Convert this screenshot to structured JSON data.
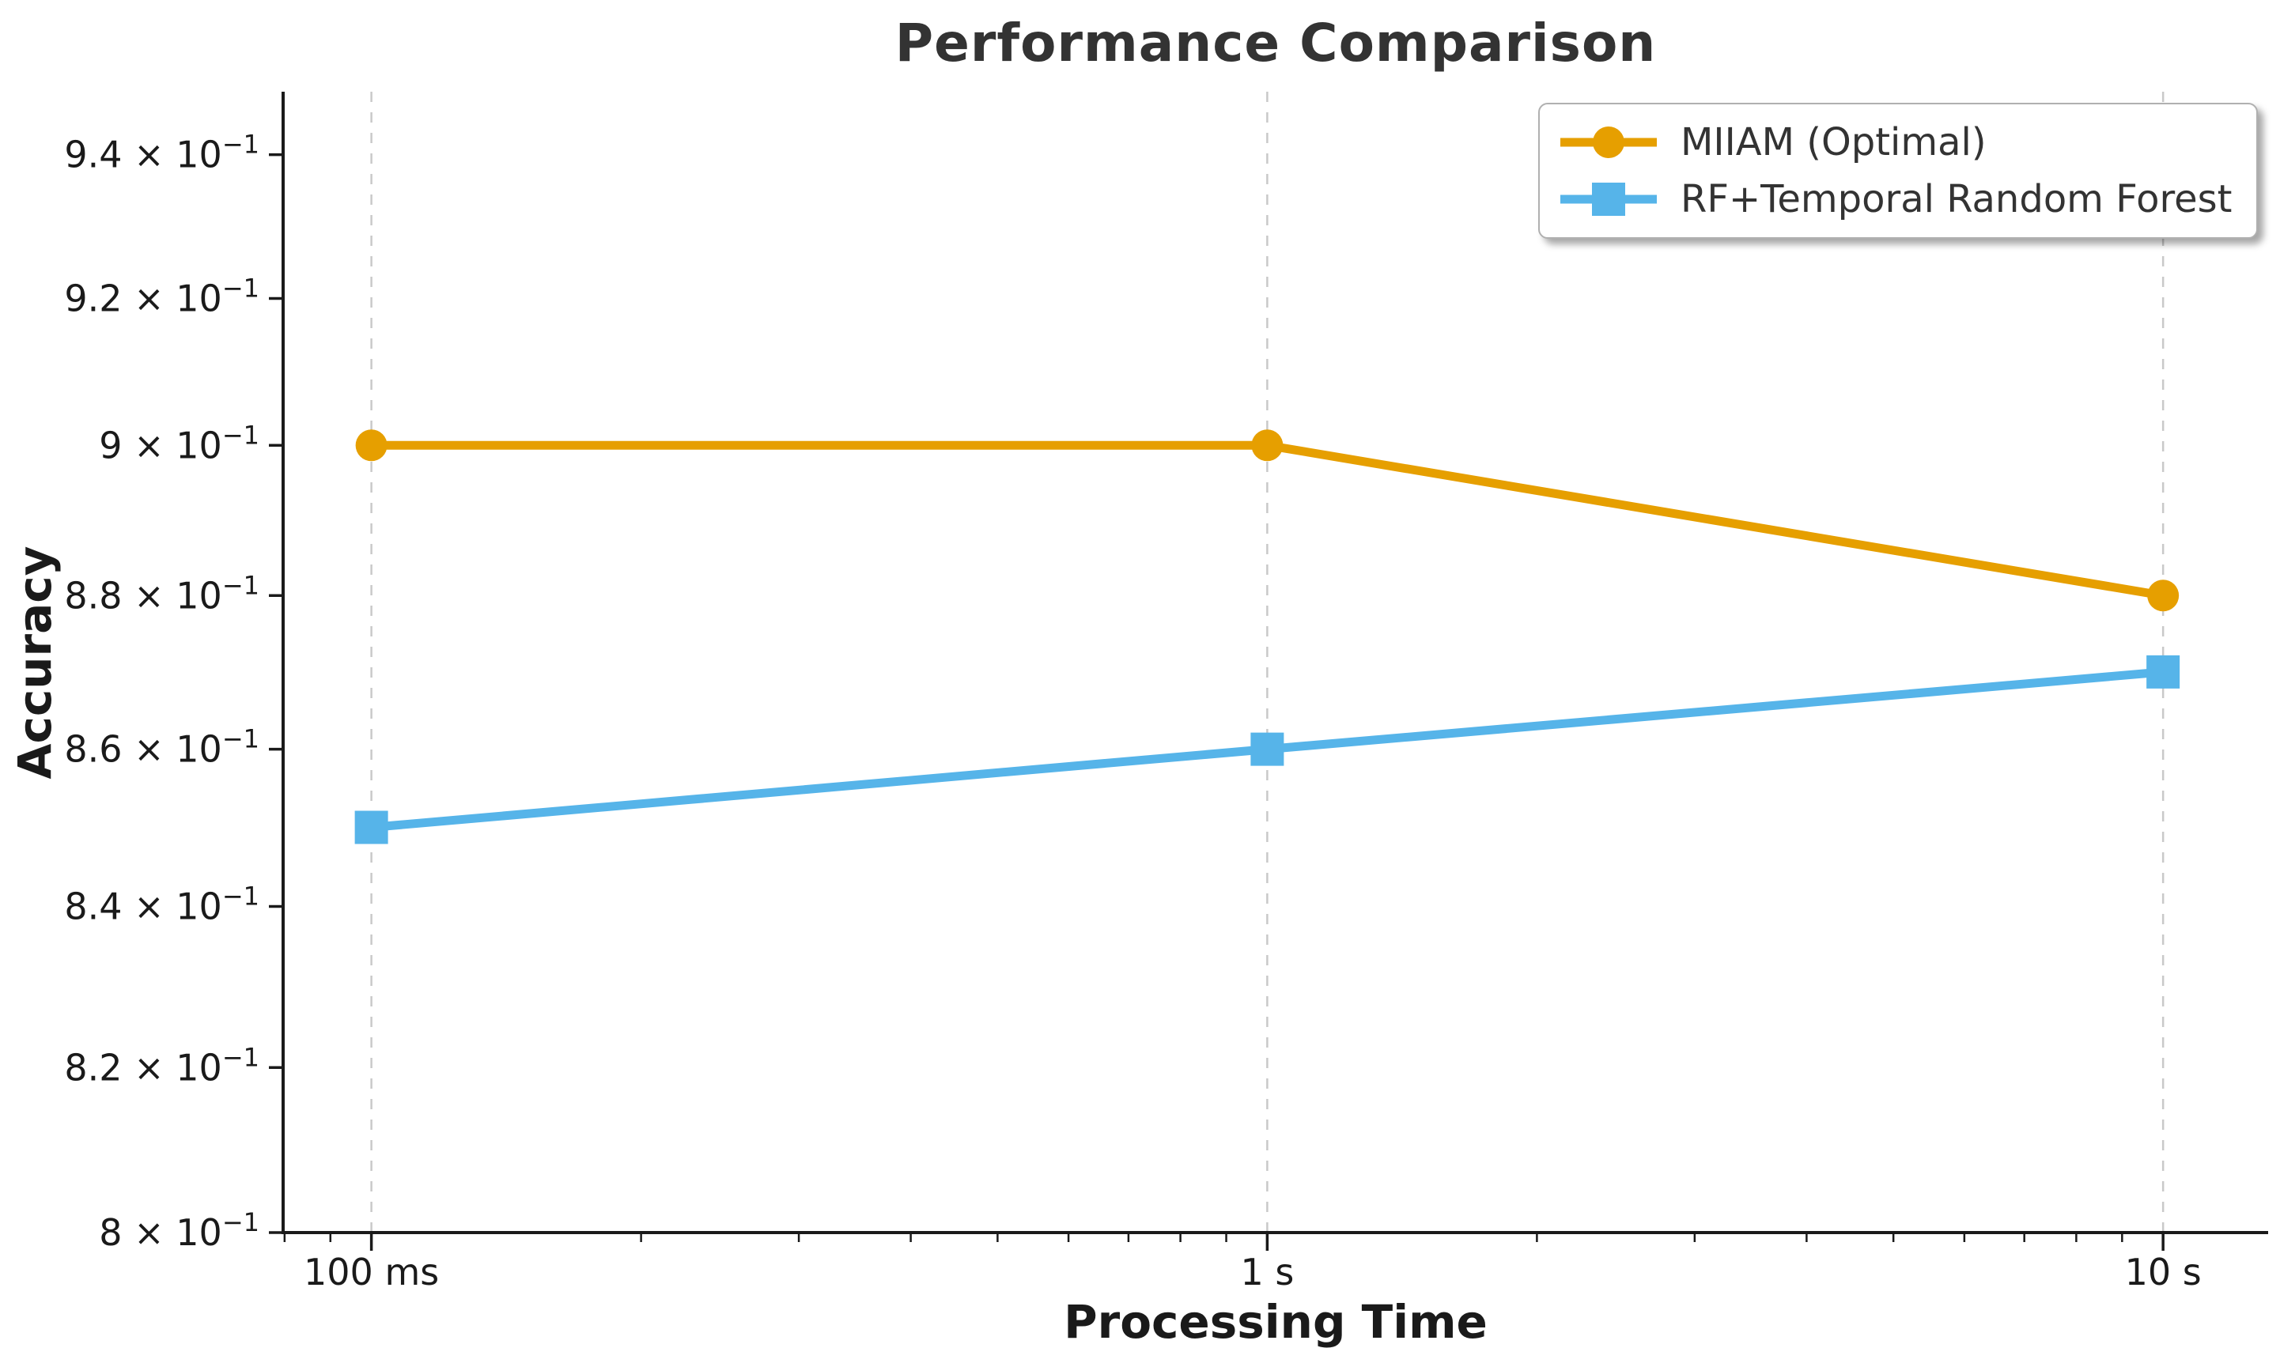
{
  "chart_data": {
    "type": "line",
    "title": "Performance Comparison",
    "xlabel": "Processing Time",
    "ylabel": "Accuracy",
    "x_scale": "log",
    "y_scale": "log",
    "x_unit": "seconds",
    "x_range_seconds": [
      0.0797,
      13.1
    ],
    "y_range": [
      0.8,
      0.9489
    ],
    "x_ticks": [
      {
        "value": 0.1,
        "label": "100 ms"
      },
      {
        "value": 1,
        "label": "1 s"
      },
      {
        "value": 10,
        "label": "10 s"
      }
    ],
    "y_ticks": [
      {
        "value": 0.8,
        "mantissa": "8",
        "base": "10",
        "exponent": "−1"
      },
      {
        "value": 0.82,
        "mantissa": "8.2",
        "base": "10",
        "exponent": "−1"
      },
      {
        "value": 0.84,
        "mantissa": "8.4",
        "base": "10",
        "exponent": "−1"
      },
      {
        "value": 0.86,
        "mantissa": "8.6",
        "base": "10",
        "exponent": "−1"
      },
      {
        "value": 0.88,
        "mantissa": "8.8",
        "base": "10",
        "exponent": "−1"
      },
      {
        "value": 0.9,
        "mantissa": "9",
        "base": "10",
        "exponent": "−1"
      },
      {
        "value": 0.92,
        "mantissa": "9.2",
        "base": "10",
        "exponent": "−1"
      },
      {
        "value": 0.94,
        "mantissa": "9.4",
        "base": "10",
        "exponent": "−1"
      }
    ],
    "grid": {
      "axis": "x",
      "style": "dashed",
      "color": "#c9c9c9"
    },
    "axis_color": "#1a1a1a",
    "tick_label_color": "#1a1a1a",
    "title_color": "#333333",
    "legend": {
      "position": "top-right"
    },
    "series": [
      {
        "name": "MIIAM (Optimal)",
        "color": "#E69F00",
        "marker": "circle",
        "x_seconds": [
          0.1,
          1,
          10
        ],
        "y": [
          0.9,
          0.9,
          0.88
        ]
      },
      {
        "name": "RF+Temporal Random Forest",
        "color": "#56B4E9",
        "marker": "square",
        "x_seconds": [
          0.1,
          1,
          10
        ],
        "y": [
          0.85,
          0.86,
          0.87
        ]
      }
    ]
  }
}
